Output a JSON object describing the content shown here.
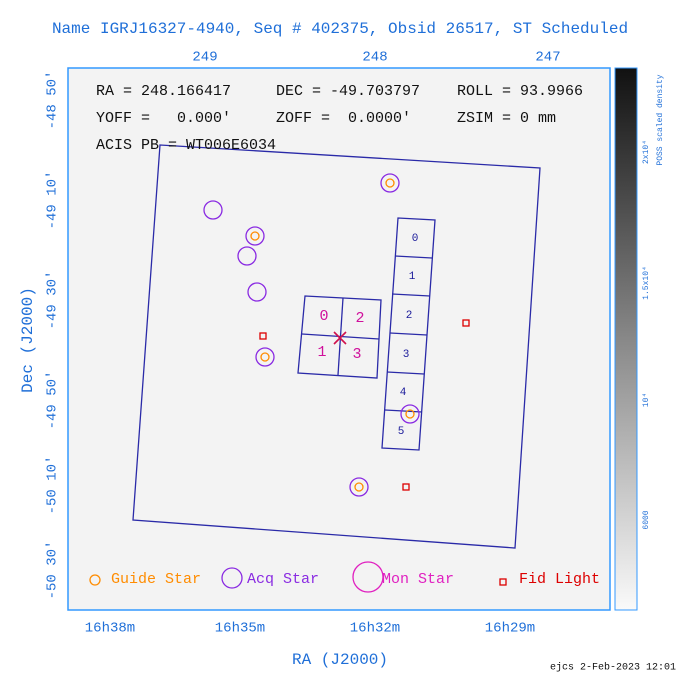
{
  "title": "Name IGRJ16327-4940, Seq # 402375, Obsid 26517, ST Scheduled",
  "top_ticks": [
    "249",
    "248",
    "247"
  ],
  "left_ticks": [
    "-48 50'",
    "-49 10'",
    "-49 30'",
    "-49 50'",
    "-50 10'",
    "-50 30'"
  ],
  "bottom_ticks": [
    "16h38m",
    "16h35m",
    "16h32m",
    "16h29m"
  ],
  "x_label": "RA (J2000)",
  "y_label": "Dec (J2000)",
  "info": {
    "ra": "RA = 248.166417",
    "dec": "DEC = -49.703797",
    "roll": "ROLL = 93.9966",
    "yoff": "YOFF =   0.000'",
    "zoff": "ZOFF =  0.0000'",
    "zsim": "ZSIM = 0 mm",
    "acis": "ACIS PB = WT006E6034"
  },
  "acis_i_labels": [
    "0",
    "2",
    "1",
    "3"
  ],
  "acis_s_labels": [
    "0",
    "1",
    "2",
    "3",
    "4",
    "5"
  ],
  "legend": [
    "Guide Star",
    "Acq Star",
    "Mon Star",
    "Fid Light"
  ],
  "colorbar": {
    "title": "POSS scaled density",
    "ticks": [
      "2x10⁴",
      "1.5x10⁴",
      "10⁴",
      "6000"
    ]
  },
  "footer": "ejcs  2-Feb-2023 12:01"
}
